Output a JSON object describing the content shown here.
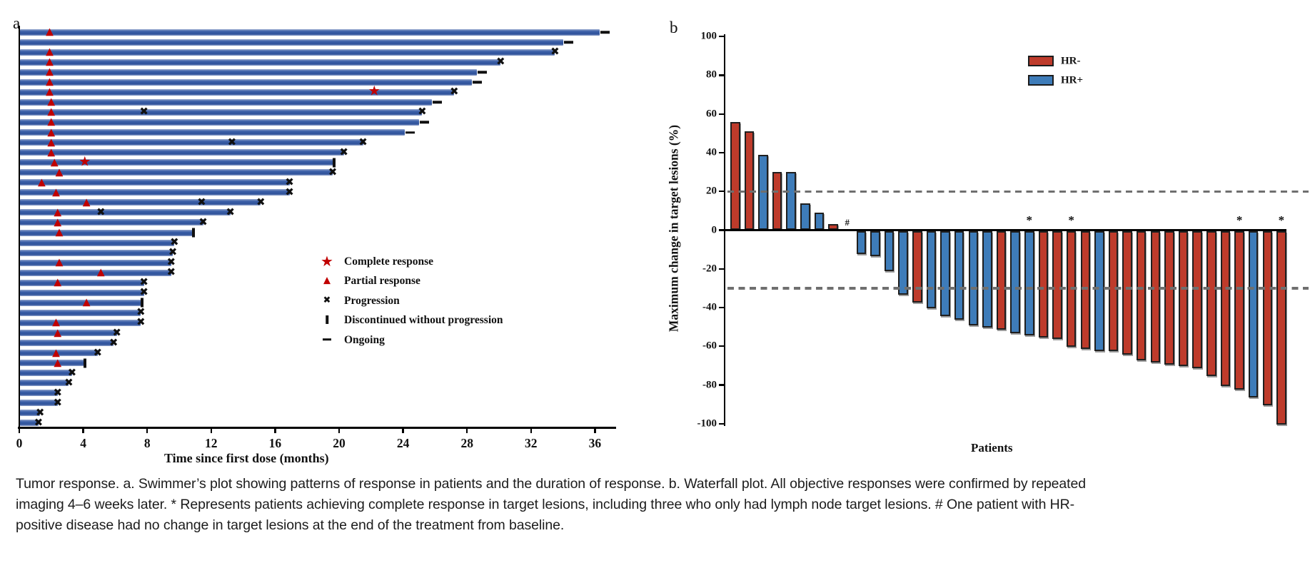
{
  "caption": "Tumor response. a. Swimmer’s plot showing patterns of response in patients and the duration of response. b. Waterfall plot. All objective responses were confirmed by repeated imaging 4–6 weeks later. * Represents patients achieving complete response in target lesions, including three who only had lymph node target lesions. # One patient with HR-positive disease had no change in target lesions at the end of the treatment from baseline.",
  "colors": {
    "swimmer_bar_blue": "#35599f",
    "marker_red": "#c00000",
    "marker_black": "#101010",
    "waterfall_red_hr_neg": "#be3b2b",
    "waterfall_blue_hr_pos": "#3e7cb9",
    "reference_dash_gray": "#6f6f6f"
  },
  "chart_data": [
    {
      "id": "swimmer",
      "type": "swimmer",
      "panel_label": "a",
      "xlabel": "Time since first dose (months)",
      "x_ticks": [
        0,
        4,
        8,
        12,
        16,
        20,
        24,
        28,
        32,
        36
      ],
      "xlim": [
        0,
        37.3
      ],
      "legend": [
        {
          "symbol": "star",
          "label": "Complete response"
        },
        {
          "symbol": "triangle",
          "label": "Partial response"
        },
        {
          "symbol": "x",
          "label": "Progression"
        },
        {
          "symbol": "vbar",
          "label": "Discontinued without progression"
        },
        {
          "symbol": "dash",
          "label": "Ongoing"
        }
      ],
      "patients": [
        {
          "months": 36.3,
          "end": "ongoing",
          "partial_response": [
            1.9
          ]
        },
        {
          "months": 34.0,
          "end": "ongoing",
          "partial_response": []
        },
        {
          "months": 33.5,
          "end": "progression",
          "partial_response": [
            1.9
          ]
        },
        {
          "months": 30.1,
          "end": "progression",
          "partial_response": [
            1.9
          ]
        },
        {
          "months": 28.6,
          "end": "ongoing",
          "partial_response": [
            1.9
          ]
        },
        {
          "months": 28.3,
          "end": "ongoing",
          "partial_response": [
            1.9
          ]
        },
        {
          "months": 27.2,
          "end": "progression",
          "partial_response": [
            1.9
          ],
          "complete_response": [
            22.2
          ]
        },
        {
          "months": 25.8,
          "end": "ongoing",
          "partial_response": [
            2.0
          ]
        },
        {
          "months": 25.2,
          "end": "progression",
          "partial_response": [
            2.0
          ],
          "progression_marks": [
            7.8
          ]
        },
        {
          "months": 25.0,
          "end": "ongoing",
          "partial_response": [
            2.0
          ]
        },
        {
          "months": 24.1,
          "end": "ongoing",
          "partial_response": [
            2.0
          ]
        },
        {
          "months": 21.5,
          "end": "progression",
          "partial_response": [
            2.0
          ],
          "progression_marks": [
            13.3
          ]
        },
        {
          "months": 20.3,
          "end": "progression",
          "partial_response": [
            2.0
          ]
        },
        {
          "months": 19.7,
          "end": "discontinued",
          "partial_response": [
            2.2
          ],
          "complete_response": [
            4.1
          ]
        },
        {
          "months": 19.6,
          "end": "progression",
          "partial_response": [
            2.5
          ]
        },
        {
          "months": 16.9,
          "end": "progression",
          "partial_response": [
            1.4
          ]
        },
        {
          "months": 16.9,
          "end": "progression",
          "partial_response": [
            2.3
          ]
        },
        {
          "months": 15.1,
          "end": "progression",
          "partial_response": [
            4.2
          ],
          "progression_marks": [
            11.4
          ]
        },
        {
          "months": 13.2,
          "end": "progression",
          "partial_response": [
            2.4
          ],
          "progression_marks": [
            5.1
          ]
        },
        {
          "months": 11.5,
          "end": "progression",
          "partial_response": [
            2.4
          ]
        },
        {
          "months": 10.9,
          "end": "discontinued",
          "partial_response": [
            2.5
          ]
        },
        {
          "months": 9.7,
          "end": "progression",
          "partial_response": []
        },
        {
          "months": 9.6,
          "end": "progression",
          "partial_response": []
        },
        {
          "months": 9.5,
          "end": "progression",
          "partial_response": [
            2.5
          ]
        },
        {
          "months": 9.5,
          "end": "progression",
          "partial_response": [
            5.1
          ]
        },
        {
          "months": 7.8,
          "end": "progression",
          "partial_response": [
            2.4
          ]
        },
        {
          "months": 7.8,
          "end": "progression",
          "partial_response": []
        },
        {
          "months": 7.7,
          "end": "discontinued",
          "partial_response": [
            4.2
          ]
        },
        {
          "months": 7.6,
          "end": "progression",
          "partial_response": []
        },
        {
          "months": 7.6,
          "end": "progression",
          "partial_response": [
            2.3
          ]
        },
        {
          "months": 6.1,
          "end": "progression",
          "partial_response": [
            2.4
          ]
        },
        {
          "months": 5.9,
          "end": "progression",
          "partial_response": []
        },
        {
          "months": 4.9,
          "end": "progression",
          "partial_response": [
            2.3
          ]
        },
        {
          "months": 4.1,
          "end": "discontinued",
          "partial_response": [
            2.4
          ]
        },
        {
          "months": 3.3,
          "end": "progression",
          "partial_response": []
        },
        {
          "months": 3.1,
          "end": "progression",
          "partial_response": []
        },
        {
          "months": 2.4,
          "end": "progression",
          "partial_response": []
        },
        {
          "months": 2.4,
          "end": "progression",
          "partial_response": []
        },
        {
          "months": 1.3,
          "end": "progression",
          "partial_response": []
        },
        {
          "months": 1.2,
          "end": "progression",
          "partial_response": []
        }
      ]
    },
    {
      "id": "waterfall",
      "type": "bar",
      "panel_label": "b",
      "xlabel": "Patients",
      "ylabel": "Maximum change in target lesions (%)",
      "ylim": [
        -100,
        100
      ],
      "y_ticks": [
        100,
        80,
        60,
        40,
        20,
        0,
        -20,
        -40,
        -60,
        -80,
        -100
      ],
      "reference_lines": [
        20,
        -30
      ],
      "legend": [
        {
          "label": "HR-",
          "group": "HR-",
          "color": "#be3b2b"
        },
        {
          "label": "HR+",
          "group": "HR+",
          "color": "#3e7cb9"
        }
      ],
      "annotations": {
        "star": "*",
        "hash": "#"
      },
      "bars": [
        {
          "value": 56,
          "group": "HR-"
        },
        {
          "value": 51,
          "group": "HR-"
        },
        {
          "value": 39,
          "group": "HR+"
        },
        {
          "value": 30,
          "group": "HR-"
        },
        {
          "value": 30,
          "group": "HR+"
        },
        {
          "value": 14,
          "group": "HR+"
        },
        {
          "value": 9,
          "group": "HR+"
        },
        {
          "value": 3,
          "group": "HR-"
        },
        {
          "value": 0,
          "group": "HR+",
          "flag": "hash"
        },
        {
          "value": -12,
          "group": "HR+"
        },
        {
          "value": -13,
          "group": "HR+"
        },
        {
          "value": -21,
          "group": "HR+"
        },
        {
          "value": -33,
          "group": "HR+"
        },
        {
          "value": -37,
          "group": "HR-"
        },
        {
          "value": -40,
          "group": "HR+"
        },
        {
          "value": -44,
          "group": "HR+"
        },
        {
          "value": -46,
          "group": "HR+"
        },
        {
          "value": -49,
          "group": "HR+"
        },
        {
          "value": -50,
          "group": "HR+"
        },
        {
          "value": -51,
          "group": "HR-"
        },
        {
          "value": -53,
          "group": "HR+"
        },
        {
          "value": -54,
          "group": "HR+",
          "flag": "star"
        },
        {
          "value": -55,
          "group": "HR-"
        },
        {
          "value": -56,
          "group": "HR-"
        },
        {
          "value": -60,
          "group": "HR-",
          "flag": "star"
        },
        {
          "value": -61,
          "group": "HR-"
        },
        {
          "value": -62,
          "group": "HR+"
        },
        {
          "value": -62,
          "group": "HR-"
        },
        {
          "value": -64,
          "group": "HR-"
        },
        {
          "value": -67,
          "group": "HR-"
        },
        {
          "value": -68,
          "group": "HR-"
        },
        {
          "value": -69,
          "group": "HR-"
        },
        {
          "value": -70,
          "group": "HR-"
        },
        {
          "value": -71,
          "group": "HR-"
        },
        {
          "value": -75,
          "group": "HR-"
        },
        {
          "value": -80,
          "group": "HR-"
        },
        {
          "value": -82,
          "group": "HR-",
          "flag": "star"
        },
        {
          "value": -86,
          "group": "HR+"
        },
        {
          "value": -90,
          "group": "HR-"
        },
        {
          "value": -100,
          "group": "HR-",
          "flag": "star"
        }
      ]
    }
  ]
}
